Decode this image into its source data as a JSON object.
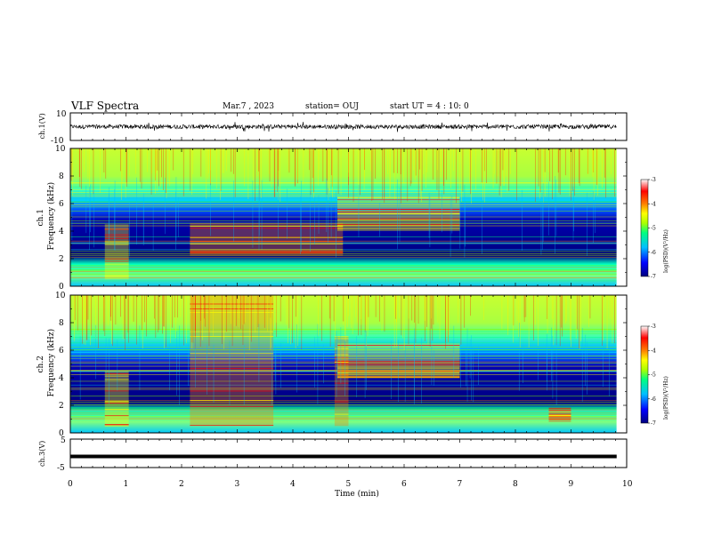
{
  "header": {
    "title": "VLF Spectra",
    "date": "Mar.7 , 2023",
    "station": "station= OUJ",
    "start": "start UT =  4 : 10: 0"
  },
  "colors": {
    "axis": "#000000",
    "background": "#ffffff",
    "colormap": [
      "#00007f",
      "#0000ff",
      "#00bfff",
      "#00ff7f",
      "#aaff00",
      "#ffff00",
      "#ff7f00",
      "#ff0000",
      "#ffffff"
    ]
  },
  "chart_data": [
    {
      "type": "line",
      "name": "ch1-waveform",
      "ylabel": "ch.1(V)",
      "ylim": [
        -10,
        10
      ],
      "y_ticklabels": [
        "10",
        "-10"
      ],
      "xlim": [
        0,
        10
      ],
      "data_range_x": [
        0,
        9.82
      ],
      "description_values": {
        "amplitude_typical": 1.5,
        "amplitude_max": 4
      }
    },
    {
      "type": "heatmap",
      "name": "ch1-spectrogram",
      "ylabel": "ch.1 Frequency (kHz)",
      "ylabel_lines": [
        "ch.1",
        "Frequency (kHz)"
      ],
      "xlim": [
        0,
        10
      ],
      "ylim": [
        0,
        10
      ],
      "y_ticks": [
        0,
        2,
        4,
        6,
        8,
        10
      ],
      "colorbar": {
        "label": "log(PSD)(V²/Hz)",
        "range": [
          -7,
          -3
        ],
        "ticks": [
          "-3",
          "-4",
          "-5",
          "-6",
          "-7"
        ]
      },
      "features": [
        {
          "t_start": 0.62,
          "t_end": 1.05,
          "f_low": 0.5,
          "f_high": 4.5,
          "level": -4.5
        },
        {
          "t_start": 2.15,
          "t_end": 4.9,
          "f_low": 2.2,
          "f_high": 4.6,
          "level": -4.0
        },
        {
          "t_start": 4.8,
          "t_end": 7.0,
          "f_low": 4.0,
          "f_high": 6.5,
          "level": -4.5
        },
        {
          "t_start": 0,
          "t_end": 9.82,
          "f_low": 6.5,
          "f_high": 10,
          "level": -5.0
        },
        {
          "t_start": 0,
          "t_end": 9.82,
          "f_low": 0,
          "f_high": 2.0,
          "level": -5.0
        }
      ]
    },
    {
      "type": "heatmap",
      "name": "ch2-spectrogram",
      "ylabel": "ch.2 Frequency (kHz)",
      "ylabel_lines": [
        "ch.2",
        "Frequency (kHz)"
      ],
      "xlim": [
        0,
        10
      ],
      "ylim": [
        0,
        10
      ],
      "y_ticks": [
        0,
        2,
        4,
        6,
        8,
        10
      ],
      "colorbar": {
        "label": "log(PSD)(V²/Hz)",
        "range": [
          -7,
          -3
        ],
        "ticks": [
          "-3",
          "-4",
          "-5",
          "-6",
          "-7"
        ]
      },
      "features": [
        {
          "t_start": 0.62,
          "t_end": 1.05,
          "f_low": 0.5,
          "f_high": 4.5,
          "level": -4.5
        },
        {
          "t_start": 2.15,
          "t_end": 3.65,
          "f_low": 0.5,
          "f_high": 10,
          "level": -4.0
        },
        {
          "t_start": 4.75,
          "t_end": 5.0,
          "f_low": 0.5,
          "f_high": 7.0,
          "level": -4.0
        },
        {
          "t_start": 4.8,
          "t_end": 7.0,
          "f_low": 4.0,
          "f_high": 6.5,
          "level": -4.5
        },
        {
          "t_start": 8.6,
          "t_end": 9.0,
          "f_low": 0.8,
          "f_high": 1.8,
          "level": -3.5
        }
      ]
    },
    {
      "type": "line",
      "name": "ch3-waveform",
      "ylabel": "ch.3(V)",
      "ylim": [
        -5,
        5
      ],
      "y_ticklabels": [
        "5",
        "-5"
      ],
      "xlim": [
        0,
        10
      ],
      "values_note": "constant",
      "y_value": -1.1,
      "xlabel": "Time (min)",
      "x_ticks": [
        0,
        1,
        2,
        3,
        4,
        5,
        6,
        7,
        8,
        9,
        10
      ]
    }
  ]
}
